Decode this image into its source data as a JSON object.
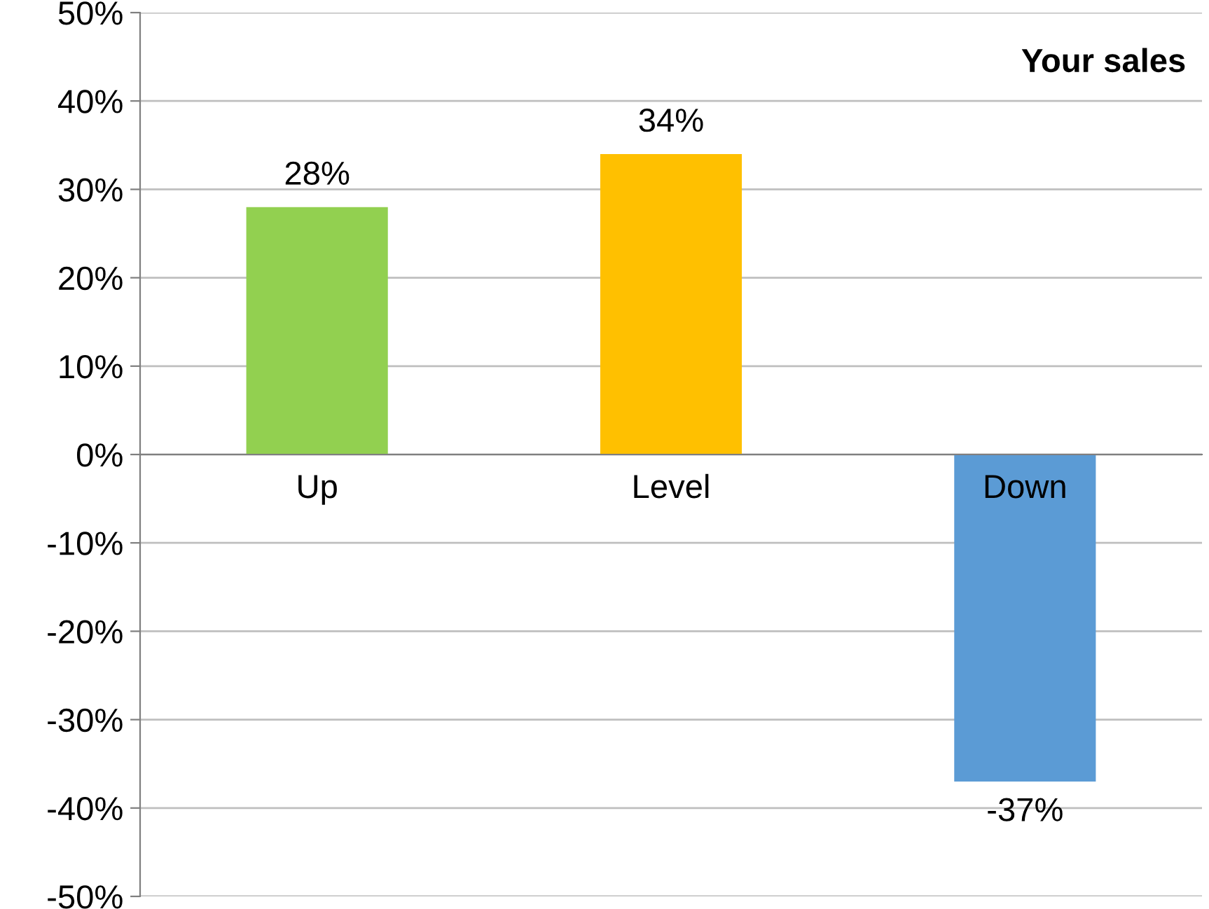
{
  "chart_data": {
    "type": "bar",
    "title": "Your sales",
    "categories": [
      "Up",
      "Level",
      "Down"
    ],
    "values": [
      28,
      34,
      -37
    ],
    "colors": [
      "#92d050",
      "#ffc000",
      "#5b9bd5"
    ],
    "value_labels": [
      "28%",
      "34%",
      "-37%"
    ],
    "ylim": [
      -50,
      50
    ],
    "yticks": [
      {
        "value": -50,
        "label": "-50%"
      },
      {
        "value": -40,
        "label": "-40%"
      },
      {
        "value": -30,
        "label": "-30%"
      },
      {
        "value": -20,
        "label": "-20%"
      },
      {
        "value": -10,
        "label": "-10%"
      },
      {
        "value": 0,
        "label": "0%"
      },
      {
        "value": 10,
        "label": "10%"
      },
      {
        "value": 20,
        "label": "20%"
      },
      {
        "value": 30,
        "label": "30%"
      },
      {
        "value": 40,
        "label": "40%"
      },
      {
        "value": 50,
        "label": "50%"
      }
    ],
    "grid": "y",
    "legend": false
  }
}
